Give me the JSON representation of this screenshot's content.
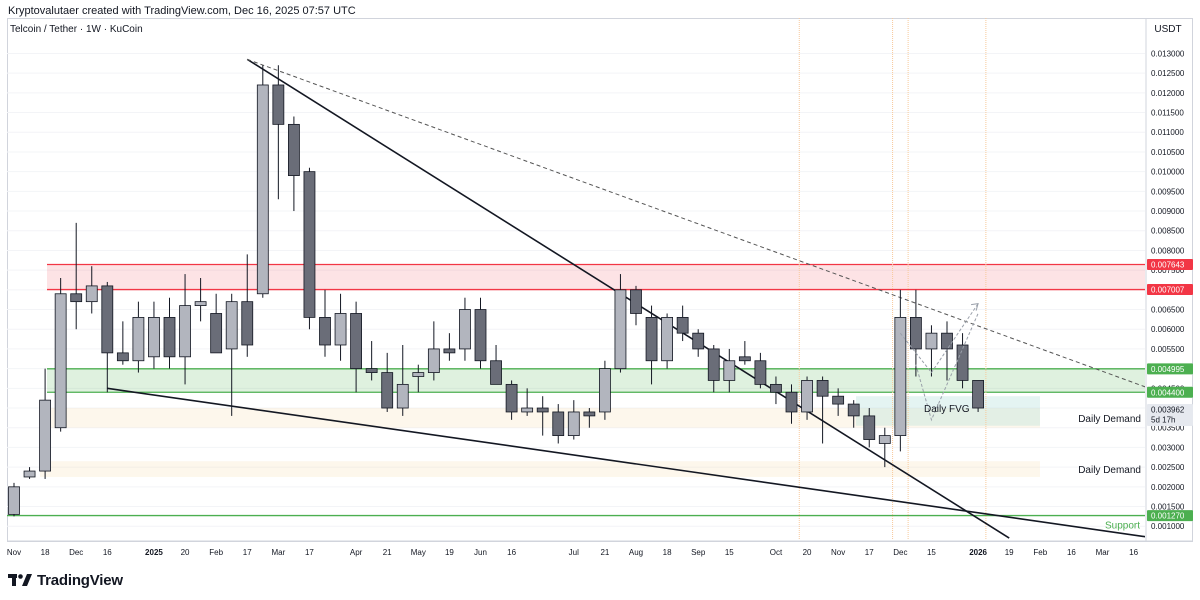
{
  "header": {
    "credit": "Kryptovalutaer created with TradingView.com, Dec 16, 2025 07:57 UTC"
  },
  "symbol": {
    "label": "Telcoin / Tether · 1W · KuCoin"
  },
  "axis": {
    "currency": "USDT"
  },
  "footer": {
    "logo_text": "TradingView",
    "logo_icon": "tradingview-logo-icon"
  },
  "chart_data": {
    "type": "candlestick",
    "y_axis": {
      "ticks": [
        "0.001000",
        "0.001500",
        "0.002000",
        "0.002500",
        "0.003000",
        "0.003500",
        "0.004000",
        "0.004500",
        "0.005000",
        "0.005500",
        "0.006000",
        "0.006500",
        "0.007000",
        "0.007500",
        "0.008000",
        "0.008500",
        "0.009000",
        "0.009500",
        "0.010000",
        "0.010500",
        "0.011000",
        "0.011500",
        "0.012000",
        "0.012500",
        "0.013000"
      ],
      "ylim": [
        0.00065,
        0.0139
      ]
    },
    "x_axis": {
      "ticks": [
        {
          "label": "Nov",
          "week": 0
        },
        {
          "label": "18",
          "week": 2
        },
        {
          "label": "Dec",
          "week": 4
        },
        {
          "label": "16",
          "week": 6
        },
        {
          "label": "2025",
          "week": 9
        },
        {
          "label": "20",
          "week": 11
        },
        {
          "label": "Feb",
          "week": 13
        },
        {
          "label": "17",
          "week": 15
        },
        {
          "label": "Mar",
          "week": 17
        },
        {
          "label": "17",
          "week": 19
        },
        {
          "label": "Apr",
          "week": 22
        },
        {
          "label": "21",
          "week": 24
        },
        {
          "label": "May",
          "week": 26
        },
        {
          "label": "19",
          "week": 28
        },
        {
          "label": "Jun",
          "week": 30
        },
        {
          "label": "16",
          "week": 32
        },
        {
          "label": "Jul",
          "week": 36
        },
        {
          "label": "21",
          "week": 38
        },
        {
          "label": "Aug",
          "week": 40
        },
        {
          "label": "18",
          "week": 42
        },
        {
          "label": "Sep",
          "week": 44
        },
        {
          "label": "15",
          "week": 46
        },
        {
          "label": "Oct",
          "week": 49
        },
        {
          "label": "20",
          "week": 51
        },
        {
          "label": "Nov",
          "week": 53
        },
        {
          "label": "17",
          "week": 55
        },
        {
          "label": "Dec",
          "week": 57
        },
        {
          "label": "15",
          "week": 59
        },
        {
          "label": "2026",
          "week": 62
        },
        {
          "label": "19",
          "week": 64
        },
        {
          "label": "Feb",
          "week": 66
        },
        {
          "label": "16",
          "week": 68
        },
        {
          "label": "Mar",
          "week": 70
        },
        {
          "label": "16",
          "week": 72
        }
      ]
    },
    "candles": [
      {
        "w": 0,
        "o": 0.0013,
        "h": 0.0021,
        "l": 0.00125,
        "c": 0.002
      },
      {
        "w": 1,
        "o": 0.00225,
        "h": 0.0025,
        "l": 0.0022,
        "c": 0.0024
      },
      {
        "w": 2,
        "o": 0.0024,
        "h": 0.005,
        "l": 0.0022,
        "c": 0.0042
      },
      {
        "w": 3,
        "o": 0.0035,
        "h": 0.0073,
        "l": 0.0034,
        "c": 0.0069
      },
      {
        "w": 4,
        "o": 0.0069,
        "h": 0.0087,
        "l": 0.006,
        "c": 0.0067
      },
      {
        "w": 5,
        "o": 0.0067,
        "h": 0.0076,
        "l": 0.0064,
        "c": 0.0071
      },
      {
        "w": 6,
        "o": 0.0071,
        "h": 0.0072,
        "l": 0.0044,
        "c": 0.0054
      },
      {
        "w": 7,
        "o": 0.0054,
        "h": 0.0062,
        "l": 0.0051,
        "c": 0.0052
      },
      {
        "w": 8,
        "o": 0.0052,
        "h": 0.0067,
        "l": 0.0049,
        "c": 0.0063
      },
      {
        "w": 9,
        "o": 0.0053,
        "h": 0.0067,
        "l": 0.005,
        "c": 0.0063
      },
      {
        "w": 10,
        "o": 0.0063,
        "h": 0.0068,
        "l": 0.005,
        "c": 0.0053
      },
      {
        "w": 11,
        "o": 0.0053,
        "h": 0.0074,
        "l": 0.0046,
        "c": 0.0066
      },
      {
        "w": 12,
        "o": 0.0066,
        "h": 0.0073,
        "l": 0.0062,
        "c": 0.0067
      },
      {
        "w": 13,
        "o": 0.0064,
        "h": 0.0069,
        "l": 0.0054,
        "c": 0.0054
      },
      {
        "w": 14,
        "o": 0.0055,
        "h": 0.0069,
        "l": 0.0038,
        "c": 0.0067
      },
      {
        "w": 15,
        "o": 0.0067,
        "h": 0.0079,
        "l": 0.0053,
        "c": 0.0056
      },
      {
        "w": 16,
        "o": 0.0069,
        "h": 0.0127,
        "l": 0.0068,
        "c": 0.0122
      },
      {
        "w": 17,
        "o": 0.0122,
        "h": 0.0127,
        "l": 0.0093,
        "c": 0.0112
      },
      {
        "w": 18,
        "o": 0.0112,
        "h": 0.0114,
        "l": 0.009,
        "c": 0.0099
      },
      {
        "w": 19,
        "o": 0.01,
        "h": 0.0101,
        "l": 0.006,
        "c": 0.0063
      },
      {
        "w": 20,
        "o": 0.0063,
        "h": 0.007,
        "l": 0.0053,
        "c": 0.0056
      },
      {
        "w": 21,
        "o": 0.0056,
        "h": 0.0069,
        "l": 0.0052,
        "c": 0.0064
      },
      {
        "w": 22,
        "o": 0.0064,
        "h": 0.0067,
        "l": 0.0044,
        "c": 0.005
      },
      {
        "w": 23,
        "o": 0.005,
        "h": 0.0057,
        "l": 0.0047,
        "c": 0.0049
      },
      {
        "w": 24,
        "o": 0.0049,
        "h": 0.0054,
        "l": 0.0039,
        "c": 0.004
      },
      {
        "w": 25,
        "o": 0.004,
        "h": 0.0056,
        "l": 0.0038,
        "c": 0.0046
      },
      {
        "w": 26,
        "o": 0.0048,
        "h": 0.0051,
        "l": 0.0044,
        "c": 0.0049
      },
      {
        "w": 27,
        "o": 0.0049,
        "h": 0.0062,
        "l": 0.0047,
        "c": 0.0055
      },
      {
        "w": 28,
        "o": 0.0055,
        "h": 0.0059,
        "l": 0.0052,
        "c": 0.0054
      },
      {
        "w": 29,
        "o": 0.0055,
        "h": 0.0068,
        "l": 0.0052,
        "c": 0.0065
      },
      {
        "w": 30,
        "o": 0.0065,
        "h": 0.0068,
        "l": 0.005,
        "c": 0.0052
      },
      {
        "w": 31,
        "o": 0.0052,
        "h": 0.0056,
        "l": 0.0046,
        "c": 0.0046
      },
      {
        "w": 32,
        "o": 0.0046,
        "h": 0.0047,
        "l": 0.0037,
        "c": 0.0039
      },
      {
        "w": 33,
        "o": 0.0039,
        "h": 0.0045,
        "l": 0.0038,
        "c": 0.004
      },
      {
        "w": 34,
        "o": 0.004,
        "h": 0.0043,
        "l": 0.0033,
        "c": 0.0039
      },
      {
        "w": 35,
        "o": 0.0039,
        "h": 0.0041,
        "l": 0.0031,
        "c": 0.0033
      },
      {
        "w": 36,
        "o": 0.0033,
        "h": 0.0042,
        "l": 0.0032,
        "c": 0.0039
      },
      {
        "w": 37,
        "o": 0.0039,
        "h": 0.004,
        "l": 0.0035,
        "c": 0.0038
      },
      {
        "w": 38,
        "o": 0.0039,
        "h": 0.0052,
        "l": 0.0037,
        "c": 0.005
      },
      {
        "w": 39,
        "o": 0.005,
        "h": 0.0074,
        "l": 0.0049,
        "c": 0.007
      },
      {
        "w": 40,
        "o": 0.007,
        "h": 0.0071,
        "l": 0.0061,
        "c": 0.0064
      },
      {
        "w": 41,
        "o": 0.0063,
        "h": 0.0066,
        "l": 0.0046,
        "c": 0.0052
      },
      {
        "w": 42,
        "o": 0.0052,
        "h": 0.0064,
        "l": 0.005,
        "c": 0.0063
      },
      {
        "w": 43,
        "o": 0.0063,
        "h": 0.0066,
        "l": 0.0057,
        "c": 0.0059
      },
      {
        "w": 44,
        "o": 0.0059,
        "h": 0.006,
        "l": 0.0053,
        "c": 0.0055
      },
      {
        "w": 45,
        "o": 0.0055,
        "h": 0.0056,
        "l": 0.0044,
        "c": 0.0047
      },
      {
        "w": 46,
        "o": 0.0047,
        "h": 0.0055,
        "l": 0.0044,
        "c": 0.0052
      },
      {
        "w": 47,
        "o": 0.0053,
        "h": 0.0057,
        "l": 0.0051,
        "c": 0.0052
      },
      {
        "w": 48,
        "o": 0.0052,
        "h": 0.0054,
        "l": 0.0045,
        "c": 0.0046
      },
      {
        "w": 49,
        "o": 0.0046,
        "h": 0.0048,
        "l": 0.0041,
        "c": 0.0044
      },
      {
        "w": 50,
        "o": 0.0044,
        "h": 0.0046,
        "l": 0.0036,
        "c": 0.0039
      },
      {
        "w": 51,
        "o": 0.0039,
        "h": 0.0048,
        "l": 0.0037,
        "c": 0.0047
      },
      {
        "w": 52,
        "o": 0.0047,
        "h": 0.0048,
        "l": 0.0031,
        "c": 0.0043
      },
      {
        "w": 53,
        "o": 0.0043,
        "h": 0.0045,
        "l": 0.0038,
        "c": 0.0041
      },
      {
        "w": 54,
        "o": 0.0041,
        "h": 0.0042,
        "l": 0.0035,
        "c": 0.0038
      },
      {
        "w": 55,
        "o": 0.0038,
        "h": 0.004,
        "l": 0.003,
        "c": 0.0032
      },
      {
        "w": 56,
        "o": 0.0031,
        "h": 0.0035,
        "l": 0.0025,
        "c": 0.0033
      },
      {
        "w": 57,
        "o": 0.0033,
        "h": 0.007,
        "l": 0.0029,
        "c": 0.0063
      },
      {
        "w": 58,
        "o": 0.0063,
        "h": 0.007,
        "l": 0.0048,
        "c": 0.0055
      },
      {
        "w": 59,
        "o": 0.0055,
        "h": 0.0061,
        "l": 0.0048,
        "c": 0.0059
      },
      {
        "w": 60,
        "o": 0.0059,
        "h": 0.0062,
        "l": 0.0047,
        "c": 0.0055
      },
      {
        "w": 61,
        "o": 0.0056,
        "h": 0.0059,
        "l": 0.0045,
        "c": 0.0047
      },
      {
        "w": 62,
        "o": 0.0047,
        "h": 0.0047,
        "l": 0.0039,
        "c": 0.004
      }
    ],
    "price_labels": [
      {
        "value": 0.007643,
        "text": "0.007643",
        "color": "#f23645"
      },
      {
        "value": 0.007007,
        "text": "0.007007",
        "color": "#f23645"
      },
      {
        "value": 0.004995,
        "text": "0.004995",
        "color": "#4caf50"
      },
      {
        "value": 0.0044,
        "text": "0.004400",
        "color": "#4caf50"
      },
      {
        "value": 0.003962,
        "text": "0.003962",
        "color": "#e6e9ef",
        "sub": "5d 17h"
      },
      {
        "value": 0.00127,
        "text": "0.001270",
        "color": "#4caf50"
      }
    ],
    "zones": [
      {
        "name": "resistance-zone",
        "from": 0.007007,
        "to": 0.007643,
        "color": "#f23645"
      },
      {
        "name": "demand-green-zone",
        "from": 0.0044,
        "to": 0.004995,
        "color": "#4caf50"
      },
      {
        "name": "daily-demand-upper",
        "from": 0.0035,
        "to": 0.004,
        "color": "#f5d9a8",
        "label": "Daily Demand"
      },
      {
        "name": "daily-demand-lower",
        "from": 0.00225,
        "to": 0.00265,
        "color": "#f5d9a8",
        "label": "Daily Demand"
      },
      {
        "name": "daily-fvg",
        "from": 0.00355,
        "to": 0.0043,
        "color": "#b2dfdb",
        "label": "Daily FVG"
      }
    ],
    "support": {
      "value": 0.00127,
      "label": "Support"
    },
    "trendlines": [
      {
        "name": "descending-resistance",
        "from": [
          15,
          0.01285
        ],
        "to": [
          64,
          0.0007
        ],
        "style": "solid"
      },
      {
        "name": "lower-wedge",
        "from": [
          6,
          0.0045
        ],
        "to": [
          73,
          0.00072
        ],
        "style": "solid"
      },
      {
        "name": "dotted-trend",
        "from": [
          15,
          0.01285
        ],
        "to": [
          73,
          0.0045
        ],
        "style": "dashed"
      }
    ],
    "vertical_lines_weeks": [
      50.5,
      56.5,
      57.5,
      62.5
    ],
    "projection": [
      [
        57,
        0.0059
      ],
      [
        59,
        0.0049
      ],
      [
        62,
        0.00665
      ]
    ],
    "projection_alt": [
      [
        58,
        0.0051
      ],
      [
        59,
        0.0037
      ],
      [
        62,
        0.0064
      ]
    ],
    "colors": {
      "up": "#b2b5be",
      "down": "#6a6d78",
      "border": "#131722",
      "grid": "#f0f3fa"
    }
  }
}
